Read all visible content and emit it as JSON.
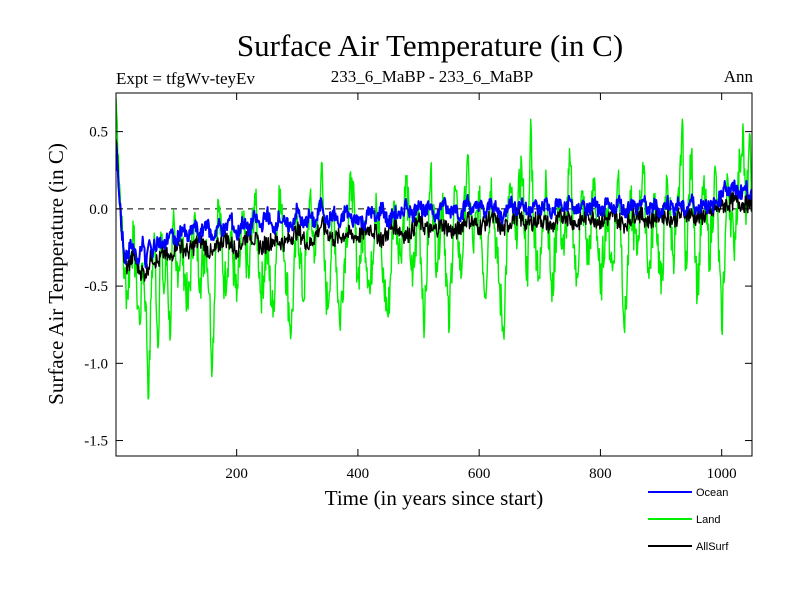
{
  "chart_data": {
    "type": "line",
    "title": "Surface Air Temperature (in C)",
    "subtitle_left": "Expt = tfgWv-teyEv",
    "subtitle_center": "233_6_MaBP - 233_6_MaBP",
    "subtitle_right": "Ann",
    "xlabel": "Time (in years since start)",
    "ylabel": "Surface Air Temperature (in C)",
    "xlim": [
      1,
      1050
    ],
    "ylim": [
      -1.6,
      0.75
    ],
    "xticks": [
      200,
      400,
      600,
      800,
      1000
    ],
    "xtick_labels": [
      "200",
      "400",
      "600",
      "800",
      "1000"
    ],
    "yticks": [
      -1.5,
      -1.0,
      -0.5,
      0.0,
      0.5
    ],
    "ytick_labels": [
      "-1.5",
      "-1.0",
      "-0.5",
      "0.0",
      "0.5"
    ],
    "zero_line": true,
    "legend_position": "bottom-right",
    "series": [
      {
        "name": "Land",
        "color": "#00ee00",
        "points": [
          [
            1,
            0.72
          ],
          [
            5,
            0.35
          ],
          [
            10,
            -0.1
          ],
          [
            15,
            -0.45
          ],
          [
            20,
            -0.55
          ],
          [
            25,
            -0.3
          ],
          [
            30,
            -0.2
          ],
          [
            35,
            -0.5
          ],
          [
            40,
            -0.75
          ],
          [
            45,
            -0.35
          ],
          [
            50,
            -0.6
          ],
          [
            55,
            -1.22
          ],
          [
            60,
            -0.4
          ],
          [
            65,
            -0.2
          ],
          [
            70,
            -0.9
          ],
          [
            75,
            -0.15
          ],
          [
            80,
            -0.55
          ],
          [
            85,
            -0.3
          ],
          [
            90,
            -0.85
          ],
          [
            95,
            -0.1
          ],
          [
            100,
            -0.4
          ],
          [
            110,
            -0.25
          ],
          [
            120,
            -0.65
          ],
          [
            130,
            -0.05
          ],
          [
            140,
            -0.45
          ],
          [
            150,
            -0.2
          ],
          [
            155,
            -0.55
          ],
          [
            160,
            -1.02
          ],
          [
            165,
            -0.3
          ],
          [
            170,
            0.05
          ],
          [
            180,
            -0.5
          ],
          [
            190,
            -0.15
          ],
          [
            200,
            -0.6
          ],
          [
            210,
            -0.1
          ],
          [
            220,
            -0.45
          ],
          [
            230,
            0.1
          ],
          [
            240,
            -0.55
          ],
          [
            250,
            -0.25
          ],
          [
            260,
            -0.7
          ],
          [
            270,
            0.15
          ],
          [
            280,
            -0.35
          ],
          [
            290,
            -0.8
          ],
          [
            300,
            -0.05
          ],
          [
            310,
            -0.6
          ],
          [
            320,
            0.05
          ],
          [
            330,
            -0.3
          ],
          [
            340,
            0.3
          ],
          [
            345,
            -0.4
          ],
          [
            350,
            -0.65
          ],
          [
            360,
            0.0
          ],
          [
            370,
            -0.75
          ],
          [
            380,
            -0.2
          ],
          [
            390,
            0.2
          ],
          [
            400,
            -0.45
          ],
          [
            410,
            -0.1
          ],
          [
            420,
            -0.55
          ],
          [
            430,
            0.1
          ],
          [
            440,
            -0.4
          ],
          [
            450,
            -0.7
          ],
          [
            460,
            0.05
          ],
          [
            470,
            -0.3
          ],
          [
            480,
            0.2
          ],
          [
            490,
            -0.5
          ],
          [
            500,
            0.0
          ],
          [
            510,
            -0.75
          ],
          [
            520,
            0.25
          ],
          [
            530,
            -0.35
          ],
          [
            540,
            0.1
          ],
          [
            550,
            -0.8
          ],
          [
            560,
            0.15
          ],
          [
            570,
            -0.45
          ],
          [
            580,
            0.3
          ],
          [
            590,
            -0.25
          ],
          [
            600,
            0.05
          ],
          [
            610,
            -0.55
          ],
          [
            620,
            0.2
          ],
          [
            630,
            -0.35
          ],
          [
            640,
            -0.8
          ],
          [
            650,
            0.15
          ],
          [
            660,
            -0.2
          ],
          [
            670,
            0.3
          ],
          [
            680,
            -0.5
          ],
          [
            685,
            0.58
          ],
          [
            690,
            -0.1
          ],
          [
            700,
            -0.45
          ],
          [
            710,
            0.25
          ],
          [
            720,
            -0.6
          ],
          [
            730,
            0.05
          ],
          [
            740,
            -0.3
          ],
          [
            750,
            0.3
          ],
          [
            760,
            -0.5
          ],
          [
            770,
            0.1
          ],
          [
            780,
            -0.35
          ],
          [
            790,
            0.2
          ],
          [
            800,
            -0.55
          ],
          [
            810,
            0.0
          ],
          [
            820,
            -0.4
          ],
          [
            830,
            0.25
          ],
          [
            840,
            -0.8
          ],
          [
            850,
            0.05
          ],
          [
            860,
            -0.3
          ],
          [
            870,
            0.3
          ],
          [
            880,
            -0.45
          ],
          [
            890,
            0.1
          ],
          [
            900,
            -0.55
          ],
          [
            910,
            0.2
          ],
          [
            920,
            -0.3
          ],
          [
            930,
            0.05
          ],
          [
            935,
            0.58
          ],
          [
            940,
            -0.4
          ],
          [
            950,
            0.35
          ],
          [
            960,
            -0.55
          ],
          [
            970,
            0.15
          ],
          [
            980,
            -0.3
          ],
          [
            990,
            0.25
          ],
          [
            1000,
            -0.78
          ],
          [
            1010,
            0.2
          ],
          [
            1020,
            -0.25
          ],
          [
            1030,
            0.3
          ],
          [
            1035,
            0.55
          ],
          [
            1040,
            -0.1
          ],
          [
            1045,
            0.4
          ],
          [
            1050,
            0.2
          ]
        ]
      },
      {
        "name": "AllSurf",
        "color": "#000000",
        "points": [
          [
            1,
            0.45
          ],
          [
            5,
            0.2
          ],
          [
            10,
            -0.15
          ],
          [
            15,
            -0.35
          ],
          [
            20,
            -0.38
          ],
          [
            30,
            -0.3
          ],
          [
            40,
            -0.4
          ],
          [
            50,
            -0.42
          ],
          [
            60,
            -0.3
          ],
          [
            70,
            -0.35
          ],
          [
            80,
            -0.28
          ],
          [
            90,
            -0.33
          ],
          [
            100,
            -0.22
          ],
          [
            120,
            -0.28
          ],
          [
            140,
            -0.2
          ],
          [
            160,
            -0.3
          ],
          [
            180,
            -0.18
          ],
          [
            200,
            -0.27
          ],
          [
            220,
            -0.15
          ],
          [
            240,
            -0.25
          ],
          [
            260,
            -0.2
          ],
          [
            280,
            -0.22
          ],
          [
            300,
            -0.14
          ],
          [
            320,
            -0.24
          ],
          [
            340,
            -0.1
          ],
          [
            360,
            -0.2
          ],
          [
            380,
            -0.16
          ],
          [
            400,
            -0.18
          ],
          [
            420,
            -0.12
          ],
          [
            440,
            -0.2
          ],
          [
            460,
            -0.1
          ],
          [
            480,
            -0.18
          ],
          [
            500,
            -0.08
          ],
          [
            520,
            -0.15
          ],
          [
            540,
            -0.1
          ],
          [
            560,
            -0.16
          ],
          [
            580,
            -0.06
          ],
          [
            600,
            -0.12
          ],
          [
            620,
            -0.05
          ],
          [
            640,
            -0.14
          ],
          [
            660,
            -0.04
          ],
          [
            680,
            -0.1
          ],
          [
            700,
            -0.06
          ],
          [
            720,
            -0.12
          ],
          [
            740,
            -0.03
          ],
          [
            760,
            -0.1
          ],
          [
            780,
            -0.04
          ],
          [
            800,
            -0.08
          ],
          [
            820,
            -0.05
          ],
          [
            840,
            -0.1
          ],
          [
            860,
            -0.02
          ],
          [
            880,
            -0.08
          ],
          [
            900,
            -0.03
          ],
          [
            920,
            -0.07
          ],
          [
            940,
            -0.02
          ],
          [
            960,
            -0.06
          ],
          [
            980,
            -0.03
          ],
          [
            1000,
            0.02
          ],
          [
            1020,
            0.05
          ],
          [
            1040,
            0.03
          ],
          [
            1050,
            0.04
          ]
        ]
      },
      {
        "name": "Ocean",
        "color": "#0000ff",
        "points": [
          [
            1,
            0.42
          ],
          [
            5,
            0.15
          ],
          [
            10,
            -0.12
          ],
          [
            15,
            -0.3
          ],
          [
            20,
            -0.32
          ],
          [
            25,
            -0.2
          ],
          [
            30,
            -0.25
          ],
          [
            35,
            -0.35
          ],
          [
            40,
            -0.3
          ],
          [
            45,
            -0.18
          ],
          [
            50,
            -0.38
          ],
          [
            55,
            -0.22
          ],
          [
            60,
            -0.28
          ],
          [
            70,
            -0.2
          ],
          [
            80,
            -0.25
          ],
          [
            90,
            -0.15
          ],
          [
            100,
            -0.22
          ],
          [
            110,
            -0.12
          ],
          [
            120,
            -0.2
          ],
          [
            130,
            -0.1
          ],
          [
            140,
            -0.18
          ],
          [
            150,
            -0.08
          ],
          [
            160,
            -0.2
          ],
          [
            170,
            -0.1
          ],
          [
            180,
            -0.15
          ],
          [
            190,
            -0.05
          ],
          [
            200,
            -0.18
          ],
          [
            210,
            -0.08
          ],
          [
            220,
            -0.15
          ],
          [
            230,
            -0.05
          ],
          [
            240,
            -0.12
          ],
          [
            250,
            -0.02
          ],
          [
            260,
            -0.15
          ],
          [
            270,
            -0.05
          ],
          [
            280,
            -0.1
          ],
          [
            290,
            -0.12
          ],
          [
            300,
            0.0
          ],
          [
            310,
            -0.12
          ],
          [
            320,
            -0.04
          ],
          [
            330,
            -0.1
          ],
          [
            340,
            0.05
          ],
          [
            350,
            -0.1
          ],
          [
            360,
            -0.02
          ],
          [
            370,
            -0.12
          ],
          [
            380,
            0.0
          ],
          [
            390,
            -0.08
          ],
          [
            400,
            -0.05
          ],
          [
            410,
            -0.1
          ],
          [
            420,
            0.0
          ],
          [
            430,
            -0.08
          ],
          [
            440,
            0.02
          ],
          [
            450,
            -0.1
          ],
          [
            460,
            -0.02
          ],
          [
            470,
            -0.06
          ],
          [
            480,
            0.04
          ],
          [
            490,
            -0.05
          ],
          [
            500,
            0.05
          ],
          [
            510,
            -0.04
          ],
          [
            520,
            0.03
          ],
          [
            530,
            -0.06
          ],
          [
            540,
            0.05
          ],
          [
            550,
            -0.03
          ],
          [
            560,
            0.02
          ],
          [
            570,
            -0.05
          ],
          [
            580,
            0.06
          ],
          [
            590,
            -0.02
          ],
          [
            600,
            0.04
          ],
          [
            610,
            -0.04
          ],
          [
            620,
            0.05
          ],
          [
            630,
            -0.02
          ],
          [
            640,
            -0.06
          ],
          [
            650,
            0.06
          ],
          [
            660,
            -0.01
          ],
          [
            670,
            0.05
          ],
          [
            680,
            -0.03
          ],
          [
            690,
            0.04
          ],
          [
            700,
            -0.02
          ],
          [
            710,
            0.05
          ],
          [
            720,
            -0.04
          ],
          [
            730,
            0.05
          ],
          [
            740,
            -0.01
          ],
          [
            750,
            0.06
          ],
          [
            760,
            -0.03
          ],
          [
            770,
            0.04
          ],
          [
            780,
            -0.02
          ],
          [
            790,
            0.05
          ],
          [
            800,
            -0.04
          ],
          [
            810,
            0.03
          ],
          [
            820,
            -0.02
          ],
          [
            830,
            0.06
          ],
          [
            840,
            -0.03
          ],
          [
            850,
            0.04
          ],
          [
            860,
            0.0
          ],
          [
            870,
            0.06
          ],
          [
            880,
            -0.02
          ],
          [
            890,
            0.03
          ],
          [
            900,
            -0.03
          ],
          [
            910,
            0.05
          ],
          [
            920,
            0.0
          ],
          [
            930,
            0.04
          ],
          [
            940,
            -0.02
          ],
          [
            950,
            0.06
          ],
          [
            960,
            -0.01
          ],
          [
            970,
            0.05
          ],
          [
            980,
            0.0
          ],
          [
            990,
            0.04
          ],
          [
            1000,
            0.08
          ],
          [
            1005,
            0.18
          ],
          [
            1010,
            0.1
          ],
          [
            1020,
            0.14
          ],
          [
            1030,
            0.1
          ],
          [
            1040,
            0.14
          ],
          [
            1050,
            0.08
          ]
        ]
      }
    ],
    "legend": [
      {
        "name": "Ocean",
        "color": "#0000ff"
      },
      {
        "name": "Land",
        "color": "#00ee00"
      },
      {
        "name": "AllSurf",
        "color": "#000000"
      }
    ]
  }
}
